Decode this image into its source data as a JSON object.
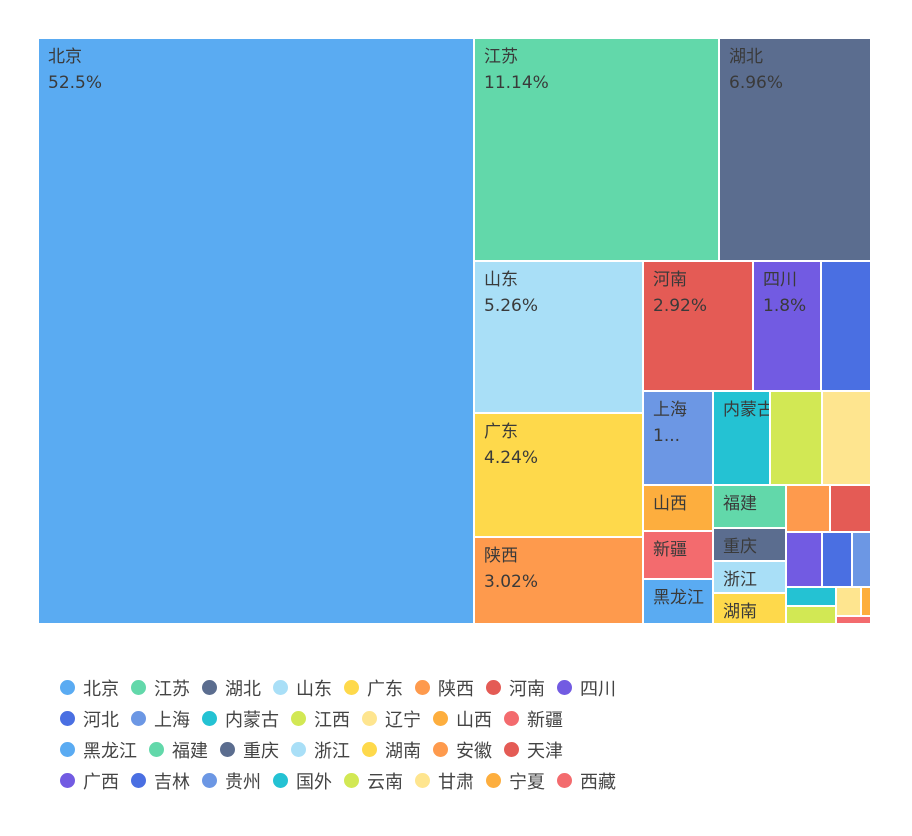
{
  "chart_data": {
    "type": "treemap",
    "label_format": "percent",
    "items": [
      {
        "name": "北京",
        "value": 52.5,
        "label": "52.5%",
        "color": "#5aabf2"
      },
      {
        "name": "江苏",
        "value": 11.14,
        "label": "11.14%",
        "color": "#62d8aa"
      },
      {
        "name": "湖北",
        "value": 6.96,
        "label": "6.96%",
        "color": "#5b6d8f"
      },
      {
        "name": "山东",
        "value": 5.26,
        "label": "5.26%",
        "color": "#a9dff7"
      },
      {
        "name": "广东",
        "value": 4.24,
        "label": "4.24%",
        "color": "#fed94b"
      },
      {
        "name": "陕西",
        "value": 3.02,
        "label": "3.02%",
        "color": "#fe9a4d"
      },
      {
        "name": "河南",
        "value": 2.92,
        "label": "2.92%",
        "color": "#e45b55"
      },
      {
        "name": "四川",
        "value": 1.8,
        "label": "1.8%",
        "color": "#725be2"
      },
      {
        "name": "河北",
        "value": 1.24,
        "label": "",
        "color": "#4a6fe2"
      },
      {
        "name": "上海",
        "value": 1.1,
        "label": "1...",
        "color": "#6c97e4"
      },
      {
        "name": "内蒙古",
        "value": 1.06,
        "label": "",
        "color": "#24c2d3"
      },
      {
        "name": "江西",
        "value": 0.83,
        "label": "",
        "color": "#d2e854"
      },
      {
        "name": "辽宁",
        "value": 0.82,
        "label": "",
        "color": "#fee58f"
      },
      {
        "name": "山西",
        "value": 0.52,
        "label": "",
        "color": "#fdae3e"
      },
      {
        "name": "新疆",
        "value": 0.52,
        "label": "",
        "color": "#f36b6e"
      },
      {
        "name": "黑龙江",
        "value": 0.33,
        "label": "",
        "color": "#5aabf2"
      },
      {
        "name": "福建",
        "value": 0.51,
        "label": "",
        "color": "#62d8aa"
      },
      {
        "name": "重庆",
        "value": 0.37,
        "label": "",
        "color": "#5b6d8f"
      },
      {
        "name": "浙江",
        "value": 0.37,
        "label": "",
        "color": "#a9dff7"
      },
      {
        "name": "湖南",
        "value": 0.32,
        "label": "",
        "color": "#fed94b"
      },
      {
        "name": "安徽",
        "value": 0.34,
        "label": "",
        "color": "#fe9a4d"
      },
      {
        "name": "天津",
        "value": 0.34,
        "label": "",
        "color": "#e45b55"
      },
      {
        "name": "广西",
        "value": 0.24,
        "label": "",
        "color": "#725be2"
      },
      {
        "name": "吉林",
        "value": 0.18,
        "label": "",
        "color": "#4a6fe2"
      },
      {
        "name": "贵州",
        "value": 0.12,
        "label": "",
        "color": "#6c97e4"
      },
      {
        "name": "国外",
        "value": 0.1,
        "label": "",
        "color": "#24c2d3"
      },
      {
        "name": "云南",
        "value": 0.1,
        "label": "",
        "color": "#d2e854"
      },
      {
        "name": "甘肃",
        "value": 0.06,
        "label": "",
        "color": "#fee58f"
      },
      {
        "name": "宁夏",
        "value": 0.03,
        "label": "",
        "color": "#fdae3e"
      },
      {
        "name": "西藏",
        "value": 0.03,
        "label": "",
        "color": "#f36b6e"
      }
    ],
    "legend": {
      "position": "bottom",
      "rows": [
        [
          "北京",
          "江苏",
          "湖北",
          "山东",
          "广东",
          "陕西",
          "河南",
          "四川"
        ],
        [
          "河北",
          "上海",
          "内蒙古",
          "江西",
          "辽宁",
          "山西",
          "新疆"
        ],
        [
          "黑龙江",
          "福建",
          "重庆",
          "浙江",
          "湖南",
          "安徽",
          "天津"
        ],
        [
          "广西",
          "吉林",
          "贵州",
          "国外",
          "云南",
          "甘肃",
          "宁夏",
          "西藏"
        ]
      ]
    }
  }
}
